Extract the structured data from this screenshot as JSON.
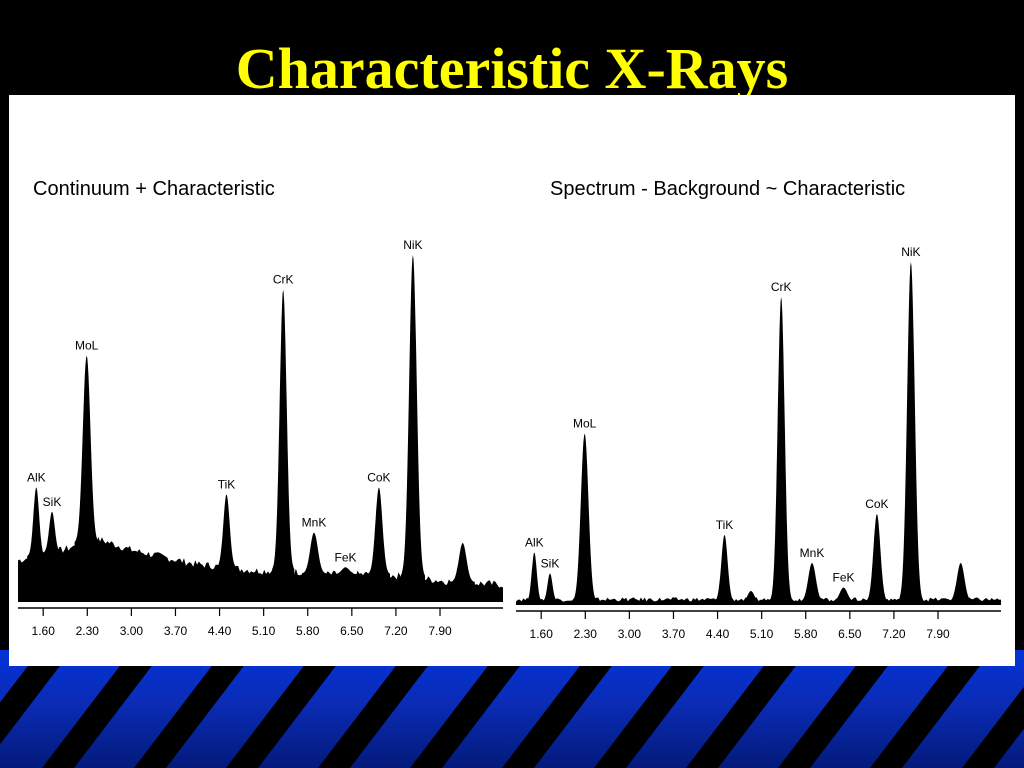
{
  "slide": {
    "title": "Characteristic X-Rays",
    "colors": {
      "background": "#000000",
      "title": "#ffff00",
      "band": "#0a2cb5",
      "stripes": "#000000",
      "panel": "#ffffff"
    }
  },
  "chart_data": [
    {
      "type": "line",
      "title": "Continuum + Characteristic",
      "xlabel": "",
      "ylabel": "",
      "xlim": [
        1.2,
        8.9
      ],
      "ylim": [
        0,
        100
      ],
      "grid": false,
      "ticks": [
        "1.60",
        "2.30",
        "3.00",
        "3.70",
        "4.40",
        "5.10",
        "5.80",
        "6.50",
        "7.20",
        "7.90"
      ],
      "background": {
        "points": [
          [
            1.2,
            12
          ],
          [
            1.7,
            14
          ],
          [
            2.1,
            16
          ],
          [
            2.5,
            18
          ],
          [
            3.0,
            15
          ],
          [
            3.5,
            13
          ],
          [
            4.0,
            11
          ],
          [
            4.5,
            10
          ],
          [
            5.0,
            9
          ],
          [
            5.5,
            9
          ],
          [
            6.0,
            8
          ],
          [
            6.5,
            8
          ],
          [
            7.0,
            8
          ],
          [
            7.5,
            7
          ],
          [
            8.0,
            6
          ],
          [
            8.9,
            5
          ]
        ]
      },
      "peaks": [
        {
          "label": "AlK",
          "energy": 1.49,
          "height": 33,
          "width": 0.045
        },
        {
          "label": "SiK",
          "energy": 1.74,
          "height": 26,
          "width": 0.045
        },
        {
          "label": "MoL",
          "energy": 2.29,
          "height": 71,
          "width": 0.06
        },
        {
          "label": "TiK",
          "energy": 4.51,
          "height": 31,
          "width": 0.05
        },
        {
          "label": "CrK",
          "energy": 5.41,
          "height": 90,
          "width": 0.055
        },
        {
          "label": "MnK",
          "energy": 5.9,
          "height": 20,
          "width": 0.06
        },
        {
          "label": "FeK",
          "energy": 6.4,
          "height": 10,
          "width": 0.06
        },
        {
          "label": "CoK",
          "energy": 6.93,
          "height": 33,
          "width": 0.055
        },
        {
          "label": "NiK",
          "energy": 7.47,
          "height": 100,
          "width": 0.06
        },
        {
          "label": "",
          "energy": 8.26,
          "height": 17,
          "width": 0.06
        }
      ]
    },
    {
      "type": "line",
      "title": "Spectrum - Background ~ Characteristic",
      "xlabel": "",
      "ylabel": "",
      "xlim": [
        1.2,
        8.9
      ],
      "ylim": [
        0,
        100
      ],
      "grid": false,
      "ticks": [
        "1.60",
        "2.30",
        "3.00",
        "3.70",
        "4.40",
        "5.10",
        "5.80",
        "6.50",
        "7.20",
        "7.90"
      ],
      "background": {
        "points": [
          [
            1.2,
            1
          ],
          [
            8.9,
            1
          ]
        ]
      },
      "peaks": [
        {
          "label": "AlK",
          "energy": 1.49,
          "height": 15,
          "width": 0.04
        },
        {
          "label": "SiK",
          "energy": 1.74,
          "height": 9,
          "width": 0.04
        },
        {
          "label": "MoL",
          "energy": 2.29,
          "height": 49,
          "width": 0.06
        },
        {
          "label": "TiK",
          "energy": 4.51,
          "height": 20,
          "width": 0.05
        },
        {
          "label": "",
          "energy": 4.93,
          "height": 4,
          "width": 0.05
        },
        {
          "label": "CrK",
          "energy": 5.41,
          "height": 88,
          "width": 0.055
        },
        {
          "label": "MnK",
          "energy": 5.9,
          "height": 12,
          "width": 0.06
        },
        {
          "label": "FeK",
          "energy": 6.4,
          "height": 5,
          "width": 0.06
        },
        {
          "label": "CoK",
          "energy": 6.93,
          "height": 26,
          "width": 0.055
        },
        {
          "label": "NiK",
          "energy": 7.47,
          "height": 98,
          "width": 0.06
        },
        {
          "label": "",
          "energy": 8.26,
          "height": 12,
          "width": 0.06
        }
      ]
    }
  ]
}
